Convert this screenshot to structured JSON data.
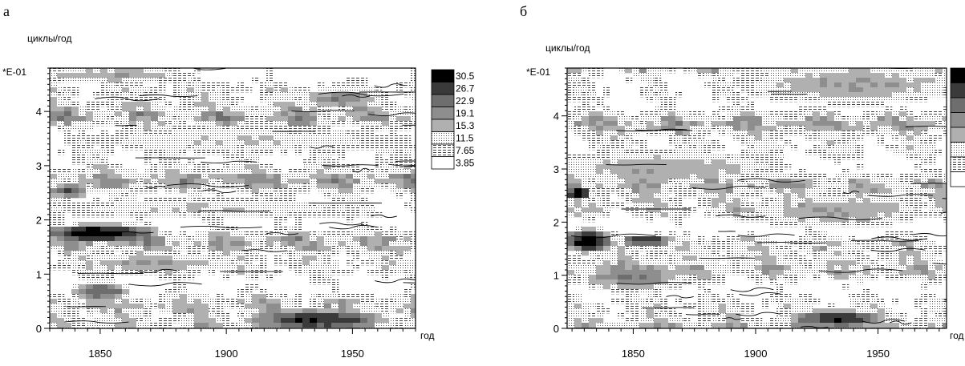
{
  "panels": [
    {
      "letter": "а",
      "chart_data": {
        "type": "heatmap",
        "title": "",
        "xlabel": "год",
        "ylabel": "циклы/год",
        "y_multiplier": "*E-01",
        "xlim": [
          1830,
          1975
        ],
        "ylim": [
          0,
          4.8
        ],
        "x_ticks": [
          1850,
          1900,
          1950
        ],
        "y_ticks": [
          0,
          1,
          2,
          3,
          4
        ],
        "legend": {
          "placement": "right",
          "levels": [
            "30.5",
            "26.7",
            "22.9",
            "19.1",
            "15.3",
            "11.5",
            "7.65",
            "3.85"
          ],
          "colors": [
            "#000000",
            "#3a3a3a",
            "#6e6e6e",
            "#8e8e8e",
            "#b0b0b0",
            "#d0d0d0",
            "#eaeaea",
            "#ffffff"
          ]
        },
        "hotspots": [
          {
            "x": [
              1830,
              1870
            ],
            "y": [
              1.65,
              1.95
            ],
            "value": 30.5
          },
          {
            "x": [
              1910,
              1960
            ],
            "y": [
              0.05,
              0.4
            ],
            "value": 26.7
          },
          {
            "x": [
              1830,
              1845
            ],
            "y": [
              2.45,
              2.7
            ],
            "value": 22.9
          },
          {
            "x": [
              1840,
              1860
            ],
            "y": [
              0.6,
              0.9
            ],
            "value": 22.9
          },
          {
            "x": [
              1930,
              1960
            ],
            "y": [
              4.1,
              4.4
            ],
            "value": 19.1
          },
          {
            "x": [
              1830,
              1880
            ],
            "y": [
              4.55,
              4.8
            ],
            "value": 15.3
          },
          {
            "x": [
              1840,
              1900
            ],
            "y": [
              1.1,
              1.4
            ],
            "value": 15.3
          },
          {
            "x": [
              1840,
              1950
            ],
            "y": [
              2.1,
              2.4
            ],
            "value": 11.5
          },
          {
            "x": [
              1850,
              1960
            ],
            "y": [
              3.3,
              3.7
            ],
            "value": 11.5
          }
        ]
      }
    },
    {
      "letter": "б",
      "chart_data": {
        "type": "heatmap",
        "title": "",
        "xlabel": "год",
        "ylabel": "циклы/год",
        "y_multiplier": "*E-01",
        "xlim": [
          1823,
          1978
        ],
        "ylim": [
          0,
          4.9
        ],
        "x_ticks": [
          1850,
          1900,
          1950
        ],
        "y_ticks": [
          0,
          1,
          2,
          3,
          4
        ],
        "legend": {
          "placement": "right",
          "colors": [
            "#000000",
            "#3a3a3a",
            "#6e6e6e",
            "#8e8e8e",
            "#b0b0b0",
            "#d0d0d0",
            "#eaeaea",
            "#ffffff"
          ]
        },
        "hotspots": [
          {
            "x": [
              1823,
              1840
            ],
            "y": [
              1.5,
              1.9
            ],
            "value": 30.5
          },
          {
            "x": [
              1823,
              1832
            ],
            "y": [
              2.45,
              2.7
            ],
            "value": 30.5
          },
          {
            "x": [
              1845,
              1865
            ],
            "y": [
              1.6,
              1.8
            ],
            "value": 26.7
          },
          {
            "x": [
              1915,
              1950
            ],
            "y": [
              0.1,
              0.4
            ],
            "value": 26.7
          },
          {
            "x": [
              1830,
              1870
            ],
            "y": [
              0.8,
              1.3
            ],
            "value": 19.1
          },
          {
            "x": [
              1900,
              1960
            ],
            "y": [
              2.0,
              2.5
            ],
            "value": 15.3
          },
          {
            "x": [
              1823,
              1900
            ],
            "y": [
              2.8,
              3.3
            ],
            "value": 15.3
          },
          {
            "x": [
              1900,
              1978
            ],
            "y": [
              4.3,
              4.9
            ],
            "value": 15.3
          }
        ]
      }
    }
  ]
}
